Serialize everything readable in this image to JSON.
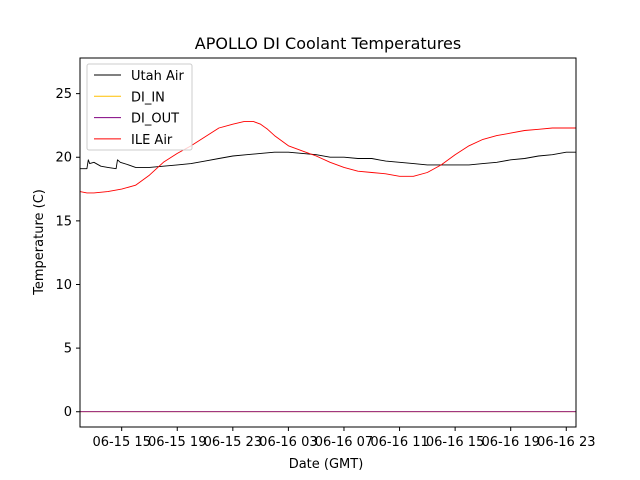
{
  "chart_data": {
    "type": "line",
    "title": "APOLLO DI Coolant Temperatures",
    "xlabel": "Date (GMT)",
    "ylabel": "Temperature (C)",
    "xlim": [
      12.0,
      47.7
    ],
    "ylim": [
      -1.2,
      27.8
    ],
    "x_unit": "hours since 06-15 00:00 GMT",
    "x_ticks": [
      {
        "value": 15,
        "label": "06-15 15"
      },
      {
        "value": 19,
        "label": "06-15 19"
      },
      {
        "value": 23,
        "label": "06-15 23"
      },
      {
        "value": 27,
        "label": "06-16 03"
      },
      {
        "value": 31,
        "label": "06-16 07"
      },
      {
        "value": 35,
        "label": "06-16 11"
      },
      {
        "value": 39,
        "label": "06-16 15"
      },
      {
        "value": 43,
        "label": "06-16 19"
      },
      {
        "value": 47,
        "label": "06-16 23"
      }
    ],
    "y_ticks": [
      {
        "value": 0,
        "label": "0"
      },
      {
        "value": 5,
        "label": "5"
      },
      {
        "value": 10,
        "label": "10"
      },
      {
        "value": 15,
        "label": "15"
      },
      {
        "value": 20,
        "label": "20"
      },
      {
        "value": 25,
        "label": "25"
      }
    ],
    "legend_position": "top-left",
    "series": [
      {
        "name": "Utah Air",
        "color": "#000000",
        "x": [
          12.0,
          12.5,
          12.6,
          12.7,
          13.0,
          13.5,
          14.0,
          14.6,
          14.7,
          14.9,
          15.5,
          16.0,
          17.0,
          18.0,
          19.0,
          20.0,
          21.0,
          22.0,
          23.0,
          24.0,
          25.0,
          26.0,
          27.0,
          28.0,
          29.0,
          30.0,
          31.0,
          32.0,
          33.0,
          34.0,
          35.0,
          36.0,
          37.0,
          38.0,
          39.0,
          40.0,
          41.0,
          42.0,
          43.0,
          44.0,
          45.0,
          46.0,
          47.0,
          47.7
        ],
        "y": [
          19.1,
          19.1,
          19.8,
          19.5,
          19.6,
          19.3,
          19.2,
          19.1,
          19.8,
          19.6,
          19.4,
          19.2,
          19.2,
          19.3,
          19.4,
          19.5,
          19.7,
          19.9,
          20.1,
          20.2,
          20.3,
          20.4,
          20.4,
          20.3,
          20.2,
          20.0,
          20.0,
          19.9,
          19.9,
          19.7,
          19.6,
          19.5,
          19.4,
          19.4,
          19.4,
          19.4,
          19.5,
          19.6,
          19.8,
          19.9,
          20.1,
          20.2,
          20.4,
          20.4
        ]
      },
      {
        "name": "DI_IN",
        "color": "#ffbf00",
        "x": [
          12.0,
          47.7
        ],
        "y": [
          0.0,
          0.0
        ]
      },
      {
        "name": "DI_OUT",
        "color": "#800080",
        "x": [
          12.0,
          47.7
        ],
        "y": [
          0.0,
          0.0
        ]
      },
      {
        "name": "ILE Air",
        "color": "#ff0000",
        "x": [
          12.0,
          12.5,
          13.0,
          14.0,
          15.0,
          16.0,
          17.0,
          18.0,
          19.0,
          20.0,
          21.0,
          22.0,
          23.0,
          23.8,
          24.5,
          25.0,
          25.5,
          26.0,
          27.0,
          28.0,
          29.0,
          30.0,
          31.0,
          32.0,
          33.0,
          34.0,
          35.0,
          36.0,
          37.0,
          38.0,
          39.0,
          40.0,
          41.0,
          42.0,
          43.0,
          44.0,
          45.0,
          46.0,
          47.0,
          47.7
        ],
        "y": [
          17.3,
          17.2,
          17.2,
          17.3,
          17.5,
          17.8,
          18.6,
          19.6,
          20.3,
          20.9,
          21.6,
          22.3,
          22.6,
          22.8,
          22.8,
          22.6,
          22.2,
          21.7,
          20.9,
          20.5,
          20.1,
          19.6,
          19.2,
          18.9,
          18.8,
          18.7,
          18.5,
          18.5,
          18.8,
          19.4,
          20.2,
          20.9,
          21.4,
          21.7,
          21.9,
          22.1,
          22.2,
          22.3,
          22.3,
          22.3
        ]
      }
    ]
  }
}
